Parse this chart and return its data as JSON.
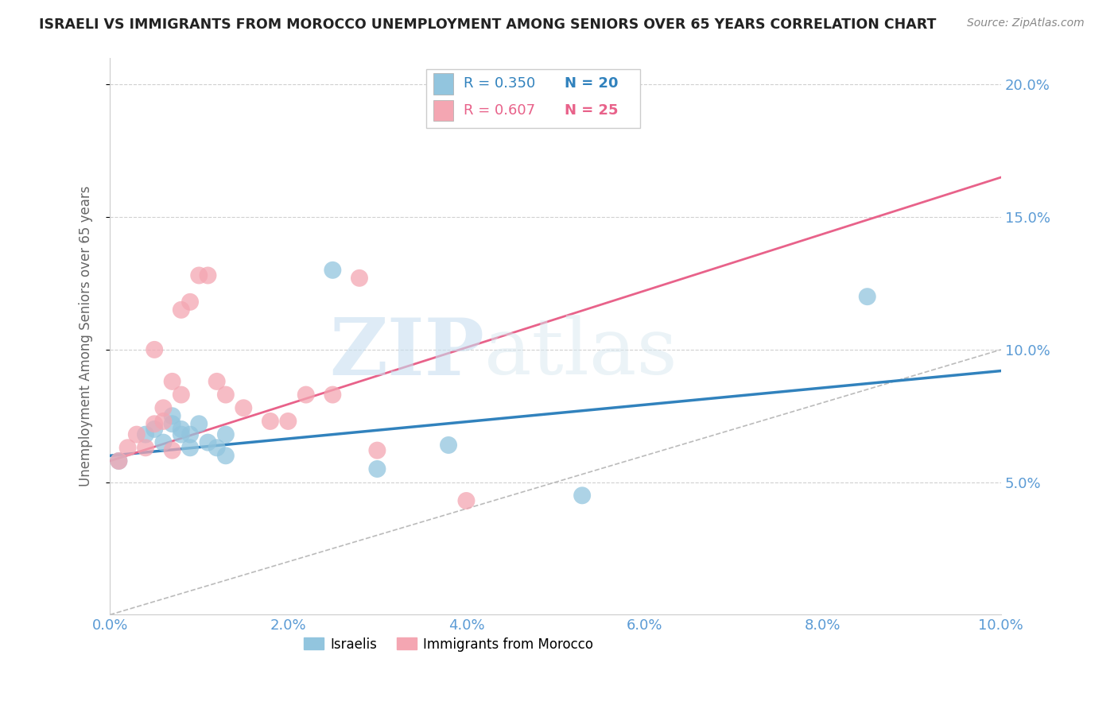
{
  "title": "ISRAELI VS IMMIGRANTS FROM MOROCCO UNEMPLOYMENT AMONG SENIORS OVER 65 YEARS CORRELATION CHART",
  "source": "Source: ZipAtlas.com",
  "ylabel": "Unemployment Among Seniors over 65 years",
  "xlim": [
    0.0,
    0.1
  ],
  "ylim": [
    0.0,
    0.21
  ],
  "xticks": [
    0.0,
    0.02,
    0.04,
    0.06,
    0.08,
    0.1
  ],
  "yticks": [
    0.05,
    0.1,
    0.15,
    0.2
  ],
  "ytick_labels": [
    "5.0%",
    "10.0%",
    "15.0%",
    "20.0%"
  ],
  "xtick_labels": [
    "0.0%",
    "2.0%",
    "4.0%",
    "6.0%",
    "8.0%",
    "10.0%"
  ],
  "background_color": "#ffffff",
  "watermark_zip": "ZIP",
  "watermark_atlas": "atlas",
  "legend_R1": "R = 0.350",
  "legend_N1": "N = 20",
  "legend_R2": "R = 0.607",
  "legend_N2": "N = 25",
  "israelis_color": "#92c5de",
  "morocco_color": "#f4a6b2",
  "trendline_israeli_color": "#3182bd",
  "trendline_morocco_color": "#e8628a",
  "diagonal_color": "#bbbbbb",
  "israelis_x": [
    0.001,
    0.004,
    0.005,
    0.006,
    0.007,
    0.007,
    0.008,
    0.008,
    0.009,
    0.009,
    0.01,
    0.011,
    0.012,
    0.013,
    0.013,
    0.025,
    0.03,
    0.038,
    0.053,
    0.085
  ],
  "israelis_y": [
    0.058,
    0.068,
    0.07,
    0.065,
    0.072,
    0.075,
    0.07,
    0.068,
    0.068,
    0.063,
    0.072,
    0.065,
    0.063,
    0.068,
    0.06,
    0.13,
    0.055,
    0.064,
    0.045,
    0.12
  ],
  "morocco_x": [
    0.001,
    0.002,
    0.003,
    0.004,
    0.005,
    0.005,
    0.006,
    0.006,
    0.007,
    0.007,
    0.008,
    0.008,
    0.009,
    0.01,
    0.011,
    0.012,
    0.013,
    0.015,
    0.018,
    0.02,
    0.022,
    0.025,
    0.028,
    0.03,
    0.04
  ],
  "morocco_y": [
    0.058,
    0.063,
    0.068,
    0.063,
    0.072,
    0.1,
    0.073,
    0.078,
    0.062,
    0.088,
    0.083,
    0.115,
    0.118,
    0.128,
    0.128,
    0.088,
    0.083,
    0.078,
    0.073,
    0.073,
    0.083,
    0.083,
    0.127,
    0.062,
    0.043
  ],
  "trendline_isr_x0": 0.0,
  "trendline_isr_y0": 0.06,
  "trendline_isr_x1": 0.1,
  "trendline_isr_y1": 0.092,
  "trendline_mor_x0": 0.0,
  "trendline_mor_y0": 0.058,
  "trendline_mor_x1": 0.1,
  "trendline_mor_y1": 0.165
}
